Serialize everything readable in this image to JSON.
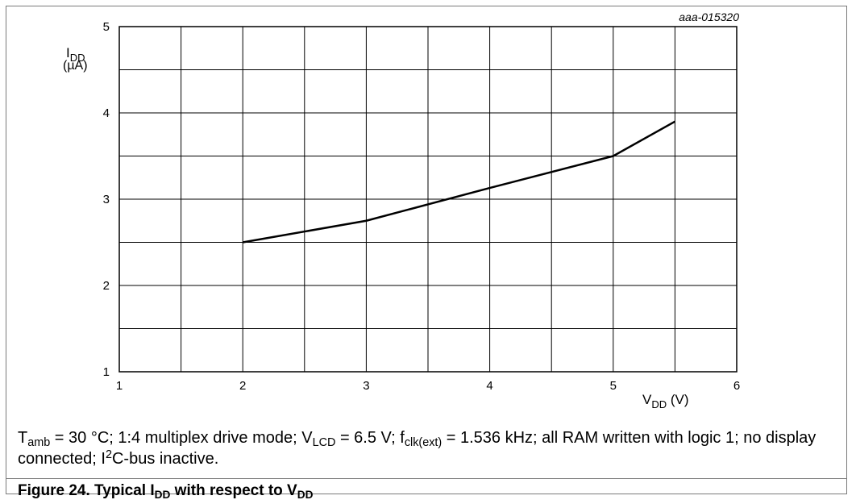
{
  "chart_data": {
    "type": "line",
    "figure_id": "aaa-015320",
    "y_label": {
      "main": "I",
      "sub": "DD",
      "unit": "(µA)"
    },
    "x_label": {
      "main": "V",
      "sub": "DD",
      "unit": " (V)"
    },
    "xlim": [
      1,
      6
    ],
    "ylim": [
      1,
      5
    ],
    "x_ticks": [
      "1",
      "2",
      "3",
      "4",
      "5",
      "6"
    ],
    "y_ticks": [
      "1",
      "2",
      "3",
      "4",
      "5"
    ],
    "grid": true,
    "series": [
      {
        "x": [
          2,
          3,
          4,
          5,
          5.5
        ],
        "y": [
          2.5,
          2.75,
          3.13,
          3.5,
          3.9
        ]
      }
    ]
  },
  "caption": {
    "t_main": "T",
    "t_sub": "amb",
    "part1": " = 30 °C; 1:4 multiplex drive mode; V",
    "v_sub": "LCD",
    "part2": " = 6.5 V; f",
    "f_sub": "clk(ext)",
    "part3": " = 1.536 kHz; all RAM written with logic 1; no display connected; I",
    "i_sup": "2",
    "part4": "C-bus inactive."
  },
  "figure_title": {
    "prefix": "Figure 24.  Typical I",
    "i_sub": "DD",
    "middle": " with respect to V",
    "v_sub": "DD"
  }
}
